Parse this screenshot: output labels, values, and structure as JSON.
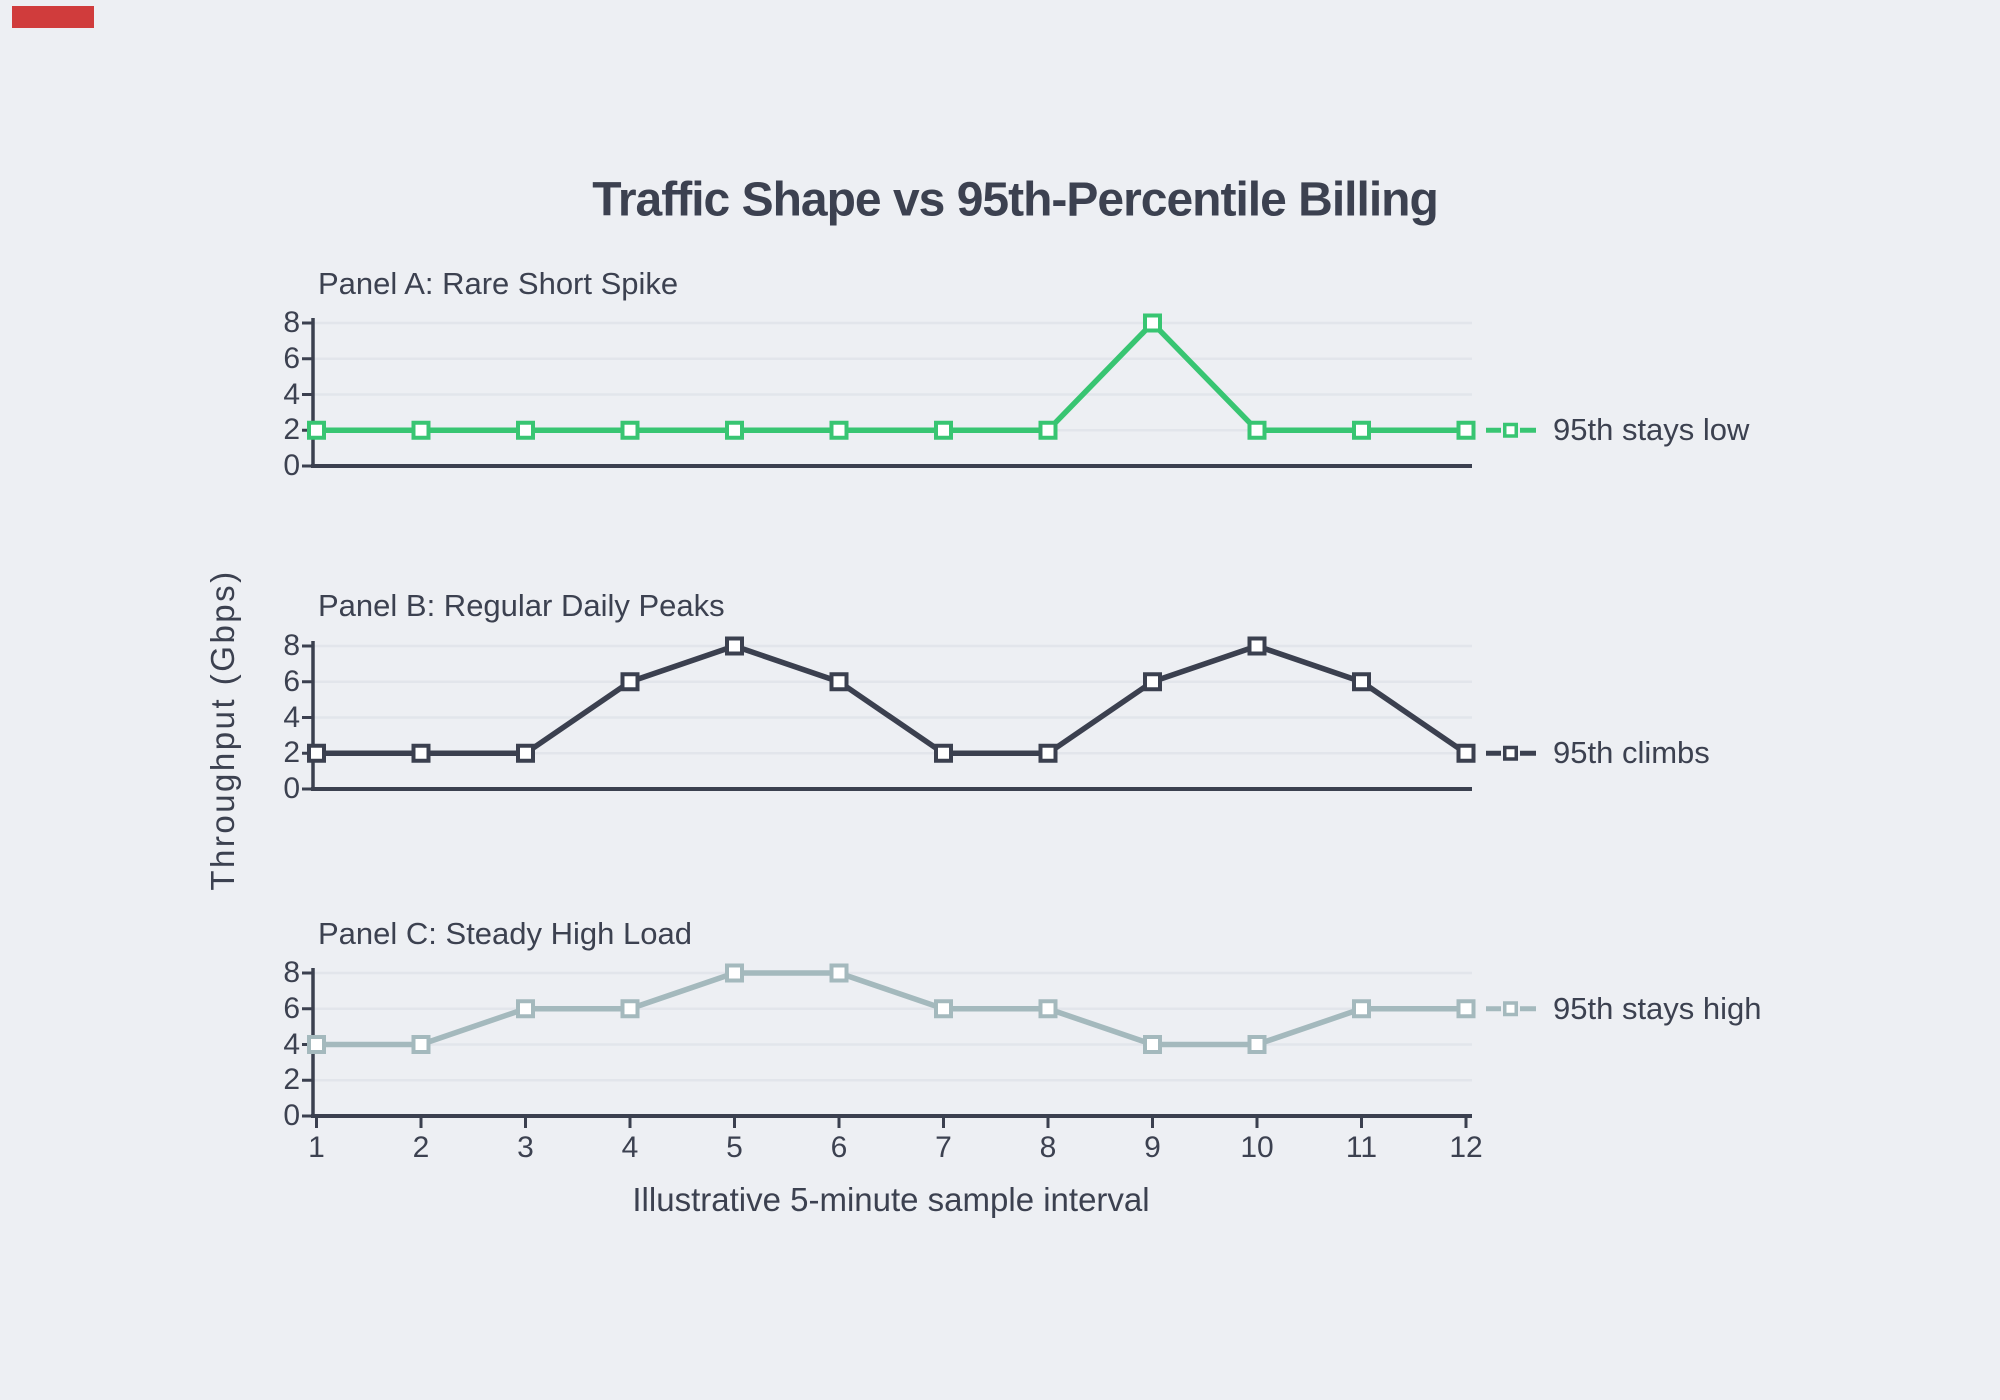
{
  "figure": {
    "background": "#edeff3",
    "text_color": "#3c4150",
    "grid_color": "#e2e5eb",
    "spine_color": "#3b404f",
    "red_marker_color": "#d03c3c"
  },
  "chart_data": {
    "type": "line",
    "title": "Traffic Shape vs 95th-Percentile Billing",
    "xlabel": "Illustrative 5-minute sample interval",
    "ylabel": "Throughput (Gbps)",
    "x": [
      1,
      2,
      3,
      4,
      5,
      6,
      7,
      8,
      9,
      10,
      11,
      12
    ],
    "x_tick_labels": [
      "1",
      "2",
      "3",
      "4",
      "5",
      "6",
      "7",
      "8",
      "9",
      "10",
      "11",
      "12"
    ],
    "y_ticks": [
      0,
      2,
      4,
      6,
      8
    ],
    "ylim": [
      0,
      8
    ],
    "grid": true,
    "marker": "square-white-filled",
    "legend_position": "right-of-last-point",
    "panels": [
      {
        "title": "Panel A: Rare Short Spike",
        "legend": "95th stays low",
        "color": "#38c572",
        "values": [
          2,
          2,
          2,
          2,
          2,
          2,
          2,
          2,
          8,
          2,
          2,
          2
        ]
      },
      {
        "title": "Panel B: Regular Daily Peaks",
        "legend": "95th climbs",
        "color": "#3b404f",
        "values": [
          2,
          2,
          2,
          6,
          8,
          6,
          2,
          2,
          6,
          8,
          6,
          2
        ]
      },
      {
        "title": "Panel C: Steady High Load",
        "legend": "95th stays high",
        "color": "#a4b9bd",
        "values": [
          4,
          4,
          6,
          6,
          8,
          8,
          6,
          6,
          4,
          4,
          6,
          6
        ]
      }
    ]
  }
}
